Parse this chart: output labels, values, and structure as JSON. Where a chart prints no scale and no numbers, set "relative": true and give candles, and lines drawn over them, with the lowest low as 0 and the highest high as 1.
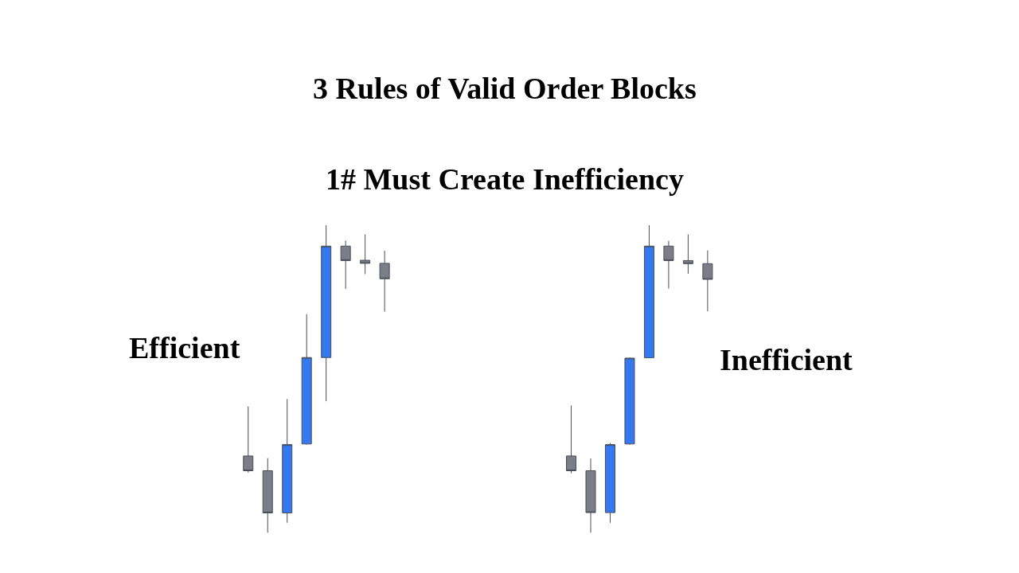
{
  "chart_data": [
    {
      "type": "other",
      "title": "3 Rules of Valid Order Blocks",
      "subtitle": "1# Must Create Inefficiency"
    },
    {
      "type": "candlestick",
      "relative": true,
      "annotations": [
        "Efficient"
      ],
      "categories": [
        null,
        null,
        null,
        null,
        null,
        null,
        null,
        null
      ],
      "ohlc": [
        [
          0.25,
          0.411,
          0.196,
          0.202
        ],
        [
          0.202,
          0.243,
          0.0,
          0.065
        ],
        [
          0.065,
          0.435,
          0.033,
          0.287
        ],
        [
          0.289,
          0.711,
          0.287,
          0.57
        ],
        [
          0.57,
          1.0,
          0.428,
          0.932
        ],
        [
          0.932,
          0.95,
          0.793,
          0.885
        ],
        [
          0.886,
          0.97,
          0.841,
          0.876
        ],
        [
          0.876,
          0.917,
          0.719,
          0.826
        ]
      ],
      "colors": [
        "#7b7d87",
        "#7b7d87",
        "#3579f0",
        "#3579f0",
        "#3579f0",
        "#7b7d87",
        "#7b7d87",
        "#7b7d87"
      ]
    },
    {
      "type": "candlestick",
      "relative": true,
      "annotations": [
        "Inefficient"
      ],
      "categories": [
        null,
        null,
        null,
        null,
        null,
        null,
        null,
        null
      ],
      "ohlc": [
        [
          0.25,
          0.414,
          0.194,
          0.202
        ],
        [
          0.202,
          0.242,
          0.0,
          0.066
        ],
        [
          0.066,
          0.292,
          0.033,
          0.287
        ],
        [
          0.289,
          0.57,
          0.287,
          0.568
        ],
        [
          0.569,
          1.0,
          0.569,
          0.932
        ],
        [
          0.932,
          0.949,
          0.794,
          0.885
        ],
        [
          0.885,
          0.97,
          0.842,
          0.875
        ],
        [
          0.875,
          0.918,
          0.72,
          0.824
        ]
      ],
      "colors": [
        "#7b7d87",
        "#7b7d87",
        "#3579f0",
        "#3579f0",
        "#3579f0",
        "#7b7d87",
        "#7b7d87",
        "#7b7d87"
      ]
    }
  ]
}
